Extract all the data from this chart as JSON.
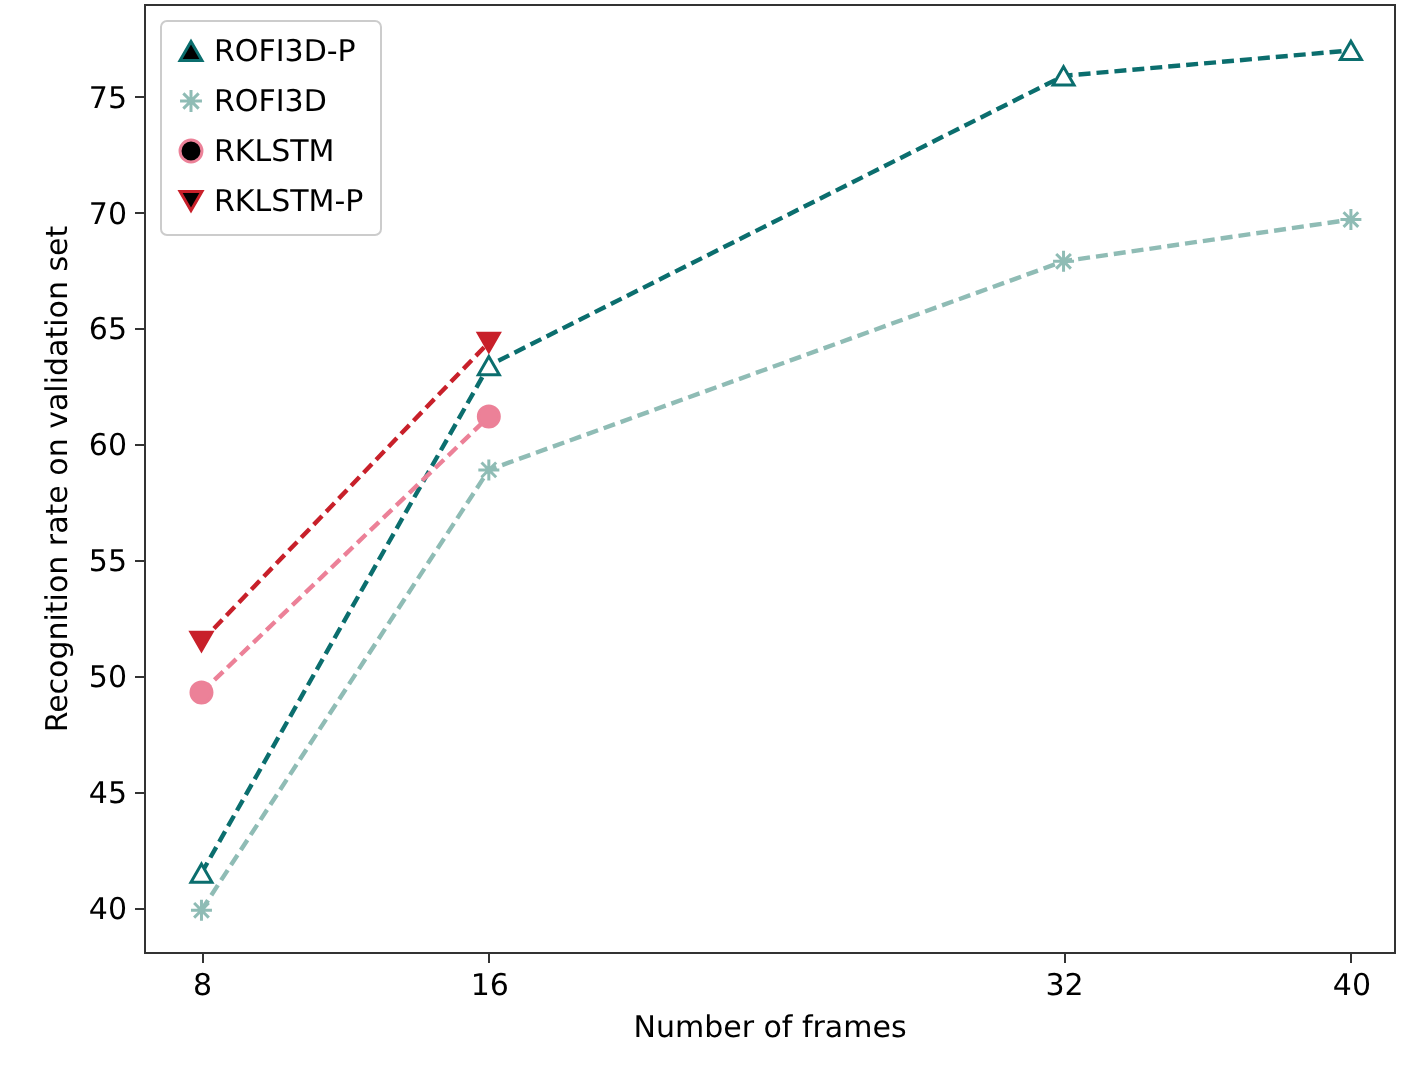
{
  "chart_data": {
    "type": "line",
    "xlabel": "Number of frames",
    "ylabel": "Recognition rate on validation set",
    "x": [
      8,
      16,
      32,
      40
    ],
    "xlim": [
      6.4,
      41.2
    ],
    "xticks": [
      8,
      16,
      32,
      40
    ],
    "ylim": [
      38.1,
      79
    ],
    "yticks": [
      40,
      45,
      50,
      55,
      60,
      65,
      70,
      75
    ],
    "grid": false,
    "legend": "top left",
    "line_style": "dashed",
    "series": [
      {
        "name": "ROFI3D-P",
        "color": "#0b6e6e",
        "marker": "triangle",
        "values": [
          41.5,
          63.4,
          75.9,
          77.0
        ]
      },
      {
        "name": "ROFI3D",
        "color": "#8fbcb5",
        "marker": "cross",
        "values": [
          39.9,
          58.9,
          67.9,
          69.7
        ]
      },
      {
        "name": "RKLSTM",
        "color": "#ec8198",
        "marker": "circle",
        "values": [
          49.3,
          61.2,
          null,
          null
        ]
      },
      {
        "name": "RKLSTM-P",
        "color": "#c8202a",
        "marker": "triangle-down",
        "values": [
          51.5,
          64.4,
          null,
          null
        ]
      }
    ]
  }
}
